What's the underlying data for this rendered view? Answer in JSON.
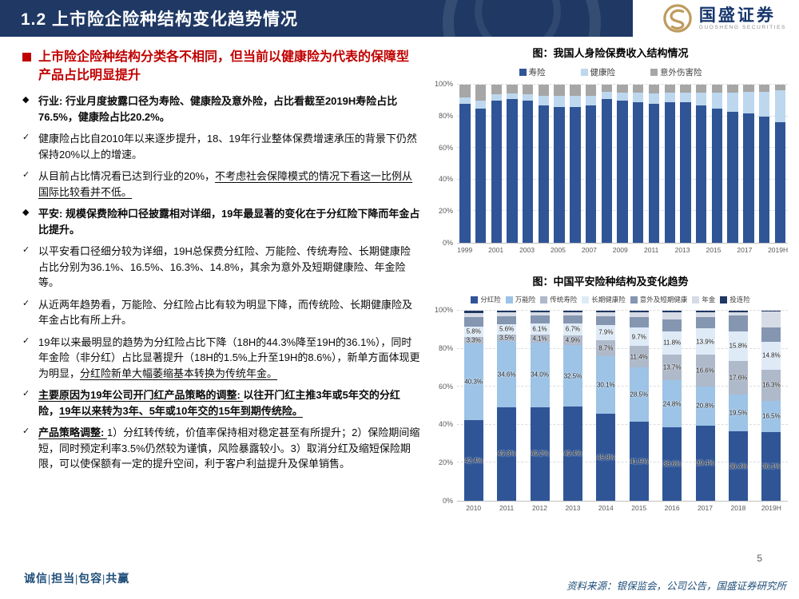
{
  "header": {
    "title": "1.2 上市险企险种结构变化趋势情况",
    "logo": {
      "name": "国盛证券",
      "subtitle": "GUOSHENG SECURITIES"
    },
    "colors": {
      "bar": "#1F3864",
      "logo_gold": "#BE9B5E"
    }
  },
  "left": {
    "headline": "上市险企险种结构分类各不相同，但当前以健康险为代表的保障型产品占比明显提升",
    "bullets": [
      {
        "marker": "◆",
        "style": "bold",
        "parts": [
          {
            "t": "行业: 行业月度披露口径为寿险、健康险及意外险，占比看截至2019H寿险占比76.5%，健康险占比20.2%。",
            "u": false
          }
        ]
      },
      {
        "marker": "✓",
        "style": "normal",
        "parts": [
          {
            "t": "健康险占比自2010年以来逐步提升，18、19年行业整体保费增速承压的背景下仍然保持20%以上的增速。",
            "u": false
          }
        ]
      },
      {
        "marker": "✓",
        "style": "normal",
        "parts": [
          {
            "t": "从目前占比情况看已达到行业的20%，",
            "u": false
          },
          {
            "t": "不考虑社会保障模式的情况下看这一比例从国际比较看并不低。",
            "u": true
          }
        ]
      },
      {
        "marker": "◆",
        "style": "bold",
        "parts": [
          {
            "t": "平安: 规模保费险种口径披露相对详细，19年最显著的变化在于分红险下降而年金占比提升。",
            "u": false
          }
        ]
      },
      {
        "marker": "✓",
        "style": "normal",
        "parts": [
          {
            "t": "以平安看口径细分较为详细，19H总保费分红险、万能险、传统寿险、长期健康险占比分别为36.1%、16.5%、16.3%、14.8%，其余为意外及短期健康险、年金险等。",
            "u": false
          }
        ]
      },
      {
        "marker": "✓",
        "style": "normal",
        "parts": [
          {
            "t": "从近两年趋势看，万能险、分红险占比有较为明显下降，而传统险、长期健康险及年金占比有所上升。",
            "u": false
          }
        ]
      },
      {
        "marker": "✓",
        "style": "normal",
        "parts": [
          {
            "t": "19年以来最明显的趋势为分红险占比下降（18H的44.3%降至19H的36.1%），同时年金险（非分红）占比显著提升（18H的1.5%上升至19H的8.6%），新单方面体现更为明显，",
            "u": false
          },
          {
            "t": "分红险新单大幅萎缩基本转换为传统年金。",
            "u": true
          }
        ]
      },
      {
        "marker": "✓",
        "style": "bold",
        "parts": [
          {
            "t": "主要原因为19年公司开门红产品策略的调整: ",
            "u": true
          },
          {
            "t": "以往开门红主推3年或5年交的分红险，",
            "u": false
          },
          {
            "t": "19年以来转为3年、5年或10年交的15年到期传统险。",
            "u": true
          }
        ]
      },
      {
        "marker": "✓",
        "style": "normal",
        "parts": [
          {
            "t": "产品策略调整: ",
            "u": true,
            "b": true
          },
          {
            "t": "1）分红转传统，价值率保持相对稳定甚至有所提升；2）保险期间缩短，同时预定利率3.5%仍然较为谨慎，风险暴露较小。3）取消分红及缩短保险期限，可以使保额有一定的提升空间，利于客户利益提升及保单销售。",
            "u": false
          }
        ]
      }
    ]
  },
  "chart_data": [
    {
      "type": "bar",
      "stacked": true,
      "title": "图：我国人身险保费收入结构情况",
      "categories": [
        "1999",
        "2000",
        "2001",
        "2002",
        "2003",
        "2004",
        "2005",
        "2006",
        "2007",
        "2008",
        "2009",
        "2010",
        "2011",
        "2012",
        "2013",
        "2014",
        "2015",
        "2016",
        "2017",
        "2018",
        "2019H"
      ],
      "label_every": 2,
      "ylim": [
        0,
        100
      ],
      "yticks": [
        "0%",
        "20%",
        "40%",
        "60%",
        "80%",
        "100%"
      ],
      "grid": true,
      "legend_position": "top",
      "series": [
        {
          "name": "寿险",
          "color": "#2F5597",
          "values": [
            88,
            85,
            90,
            91,
            90,
            87,
            86,
            86,
            87,
            91,
            90,
            89,
            88,
            89,
            89,
            87,
            85,
            83,
            82,
            80,
            76.5
          ]
        },
        {
          "name": "健康险",
          "color": "#BDD7EE",
          "values": [
            4,
            5,
            4,
            3.5,
            4,
            6,
            7,
            7,
            6,
            4.5,
            5,
            6,
            6.5,
            6,
            6,
            8,
            10,
            12,
            13.5,
            15.5,
            20.2
          ]
        },
        {
          "name": "意外伤害险",
          "color": "#A6A6A6",
          "values": [
            8,
            10,
            6,
            5.5,
            6,
            7,
            7,
            7,
            7,
            4.5,
            5,
            5,
            5.5,
            5,
            5,
            5,
            5,
            5,
            4.5,
            4.5,
            3.3
          ]
        }
      ]
    },
    {
      "type": "bar",
      "stacked": true,
      "title": "图：中国平安险种结构及变化趋势",
      "categories": [
        "2010",
        "2011",
        "2012",
        "2013",
        "2014",
        "2015",
        "2016",
        "2017",
        "2018",
        "2019H"
      ],
      "label_every": 1,
      "ylim": [
        0,
        100
      ],
      "yticks": [
        "0%",
        "20%",
        "40%",
        "60%",
        "80%",
        "100%"
      ],
      "grid": true,
      "legend_position": "top",
      "series": [
        {
          "name": "分红险",
          "color": "#2F5597",
          "show_labels": true,
          "values": [
            42.4,
            49.3,
            49.2,
            49.4,
            45.8,
            41.5,
            38.6,
            39.4,
            36.4,
            36.1
          ]
        },
        {
          "name": "万能险",
          "color": "#9DC3E6",
          "show_labels": true,
          "values": [
            40.3,
            34.6,
            34.0,
            32.5,
            30.1,
            28.5,
            24.8,
            20.8,
            19.5,
            16.5
          ]
        },
        {
          "name": "传统寿险",
          "color": "#AEB9CA",
          "show_labels": true,
          "values": [
            3.3,
            3.5,
            4.1,
            4.9,
            8.7,
            11.4,
            13.7,
            16.6,
            17.6,
            16.3
          ]
        },
        {
          "name": "长期健康险",
          "color": "#DEEBF7",
          "show_labels": true,
          "values": [
            5.8,
            5.6,
            6.1,
            6.7,
            7.9,
            9.7,
            11.8,
            13.9,
            15.8,
            14.8
          ]
        },
        {
          "name": "意外及短期健康",
          "color": "#8496B0",
          "values": [
            4.9,
            4.2,
            4.0,
            4.0,
            4.5,
            5.4,
            6.6,
            6.0,
            8.4,
            7.4
          ]
        },
        {
          "name": "年金",
          "color": "#D6DCE5",
          "values": [
            2.0,
            1.8,
            1.6,
            1.5,
            2.0,
            2.5,
            3.5,
            2.5,
            1.5,
            8.6
          ]
        },
        {
          "name": "投连险",
          "color": "#1F3864",
          "values": [
            1.3,
            1.0,
            1.0,
            1.0,
            1.0,
            1.0,
            1.0,
            0.8,
            0.8,
            0.3
          ]
        }
      ]
    }
  ],
  "footer": {
    "slogan": "诚信|担当|包容|共赢",
    "page": "5",
    "source": "资料来源：银保监会，公司公告，国盛证券研究所"
  }
}
